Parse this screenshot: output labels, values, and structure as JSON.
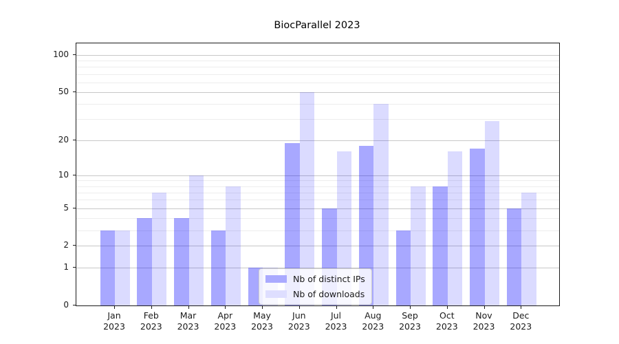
{
  "title": "BiocParallel 2023",
  "legend": {
    "items": [
      {
        "label": "Nb of distinct IPs",
        "swatch_color": "#aaaaff"
      },
      {
        "label": "Nb of downloads",
        "swatch_color": "#dedeff"
      }
    ]
  },
  "chart_data": {
    "type": "bar",
    "title": "BiocParallel 2023",
    "categories": [
      "Jan 2023",
      "Feb 2023",
      "Mar 2023",
      "Apr 2023",
      "May 2023",
      "Jun 2023",
      "Jul 2023",
      "Aug 2023",
      "Sep 2023",
      "Oct 2023",
      "Nov 2023",
      "Dec 2023"
    ],
    "series": [
      {
        "name": "Nb of distinct IPs",
        "fill_color": "rgba(0,0,255,0.34)",
        "swatch_color": "#aaaaff",
        "values": [
          3,
          4,
          4,
          3,
          1,
          19,
          5,
          18,
          3,
          8,
          17,
          5
        ]
      },
      {
        "name": "Nb of downloads",
        "fill_color": "rgba(0,0,255,0.14)",
        "swatch_color": "#dedeff",
        "values": [
          3,
          7,
          10,
          8,
          1,
          50,
          16,
          40,
          8,
          16,
          29,
          7
        ]
      }
    ],
    "xlabel": "",
    "ylabel": "",
    "y_scale": "log1p",
    "y_ticks": [
      0,
      1,
      2,
      5,
      10,
      20,
      50,
      100
    ],
    "y_minor_ticks": [
      3,
      4,
      6,
      7,
      8,
      9,
      30,
      40,
      60,
      70,
      80,
      90
    ],
    "ylim": [
      0,
      124
    ],
    "grid": true,
    "legend_position": "lower center"
  }
}
